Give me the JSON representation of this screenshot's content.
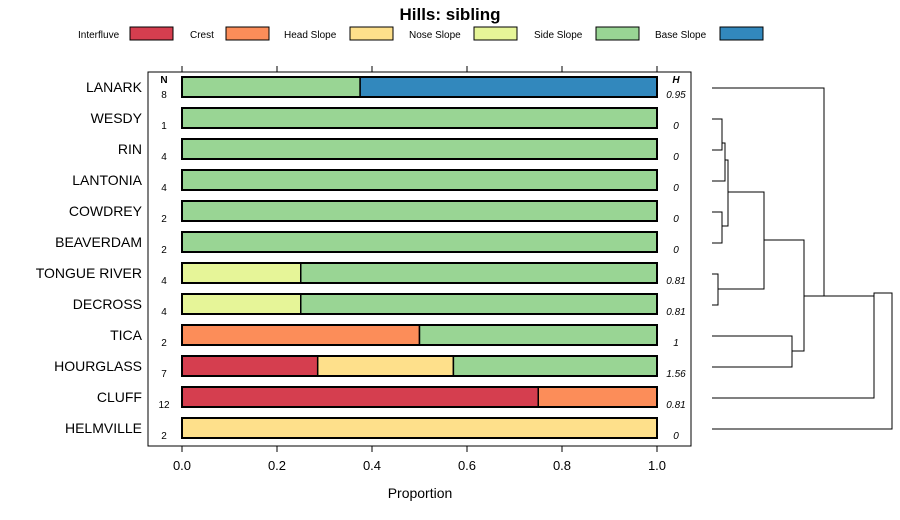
{
  "chart_data": {
    "type": "bar",
    "stacked": true,
    "orientation": "horizontal",
    "title": "Hills: sibling",
    "xlabel": "Proportion",
    "ylabel": "",
    "xlim": [
      0,
      1
    ],
    "xticks": [
      "0.0",
      "0.2",
      "0.4",
      "0.6",
      "0.8",
      "1.0"
    ],
    "xtick_values": [
      0,
      0.2,
      0.4,
      0.6,
      0.8,
      1.0
    ],
    "legend_position": "top",
    "n_header": "N",
    "h_header": "H",
    "series": [
      {
        "name": "Interfluve",
        "color": "#D53E4F"
      },
      {
        "name": "Crest",
        "color": "#FC8D59"
      },
      {
        "name": "Head Slope",
        "color": "#FEE08B"
      },
      {
        "name": "Nose Slope",
        "color": "#E6F598"
      },
      {
        "name": "Side Slope",
        "color": "#99D594"
      },
      {
        "name": "Base Slope",
        "color": "#3288BD"
      }
    ],
    "categories": [
      "LANARK",
      "WESDY",
      "RIN",
      "LANTONIA",
      "COWDREY",
      "BEAVERDAM",
      "TONGUE RIVER",
      "DECROSS",
      "TICA",
      "HOURGLASS",
      "CLUFF",
      "HELMVILLE"
    ],
    "n": [
      "8",
      "1",
      "4",
      "4",
      "2",
      "2",
      "4",
      "4",
      "2",
      "7",
      "12",
      "2"
    ],
    "h": [
      "0.95",
      "0",
      "0",
      "0",
      "0",
      "0",
      "0.81",
      "0.81",
      "1",
      "1.56",
      "0.81",
      "0"
    ],
    "values": [
      [
        0,
        0,
        0,
        0,
        0.375,
        0.625
      ],
      [
        0,
        0,
        0,
        0,
        1,
        0
      ],
      [
        0,
        0,
        0,
        0,
        1,
        0
      ],
      [
        0,
        0,
        0,
        0,
        1,
        0
      ],
      [
        0,
        0,
        0,
        0,
        1,
        0
      ],
      [
        0,
        0,
        0,
        0,
        1,
        0
      ],
      [
        0,
        0,
        0,
        0.25,
        0.75,
        0
      ],
      [
        0,
        0,
        0,
        0.25,
        0.75,
        0
      ],
      [
        0,
        0.5,
        0,
        0,
        0.5,
        0
      ],
      [
        0.2857,
        0,
        0.2857,
        0,
        0.4286,
        0
      ],
      [
        0.75,
        0.25,
        0,
        0,
        0,
        0
      ],
      [
        0,
        0,
        1,
        0,
        0,
        0
      ]
    ],
    "dendrogram": {
      "description": "hierarchical clustering of row profiles",
      "merges": [
        [
          0,
          1,
          2,
          3,
          4,
          5,
          6,
          7,
          8,
          9,
          10,
          11
        ]
      ]
    }
  }
}
